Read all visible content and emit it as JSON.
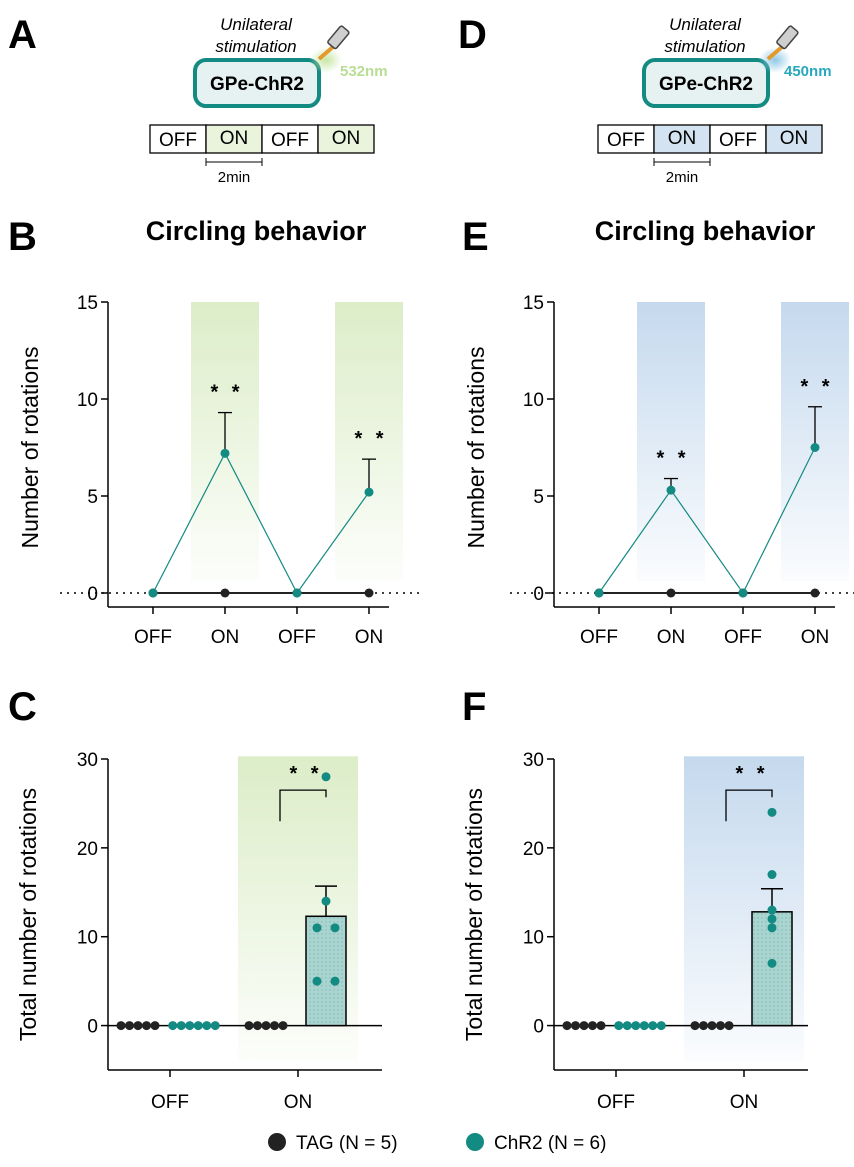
{
  "colors": {
    "tag": "#222222",
    "chr2": "#138a82",
    "green_fill": "#dcedc8",
    "green_text": "#b9dd94",
    "blue_fill": "#c5d9ee",
    "blue_text": "#28a8bd",
    "box_stroke": "#138a82",
    "box_fill": "#e6f1f1",
    "bar_fill": "#a9d4d0"
  },
  "icons": {
    "optic_fiber": "optic-fiber-icon",
    "light_cone": "light-cone-icon"
  },
  "legend": {
    "tag": "TAG (N = 5)",
    "chr2": "ChR2 (N = 6)"
  },
  "panels": {
    "A": {
      "letter": "A",
      "stim_line1": "Unilateral",
      "stim_line2": "stimulation",
      "box_label": "GPe-ChR2",
      "wavelength": "532nm",
      "sequence": [
        "OFF",
        "ON",
        "OFF",
        "ON"
      ],
      "time_label": "2min"
    },
    "D": {
      "letter": "D",
      "stim_line1": "Unilateral",
      "stim_line2": "stimulation",
      "box_label": "GPe-ChR2",
      "wavelength": "450nm",
      "sequence": [
        "OFF",
        "ON",
        "OFF",
        "ON"
      ],
      "time_label": "2min"
    }
  },
  "chart_data": [
    {
      "panel": "B",
      "type": "line",
      "title": "Circling behavior",
      "ylabel": "Number of rotations",
      "xlabel": "",
      "categories": [
        "OFF",
        "ON",
        "OFF",
        "ON"
      ],
      "ylim": [
        0,
        15
      ],
      "yticks": [
        0,
        5,
        10,
        15
      ],
      "shaded_categories": [
        1,
        3
      ],
      "light": "green",
      "series": [
        {
          "name": "TAG (N = 5)",
          "color_key": "tag",
          "values": [
            0,
            0,
            0,
            0
          ],
          "sem": [
            0,
            0,
            0,
            0
          ]
        },
        {
          "name": "ChR2 (N = 6)",
          "color_key": "chr2",
          "values": [
            0,
            7.2,
            0,
            5.2
          ],
          "sem": [
            0,
            2.1,
            0,
            1.7
          ]
        }
      ],
      "annotations": [
        {
          "category": 1,
          "text": "* *"
        },
        {
          "category": 3,
          "text": "* *"
        }
      ]
    },
    {
      "panel": "E",
      "type": "line",
      "title": "Circling behavior",
      "ylabel": "Number of rotations",
      "xlabel": "",
      "categories": [
        "OFF",
        "ON",
        "OFF",
        "ON"
      ],
      "ylim": [
        0,
        15
      ],
      "yticks": [
        0,
        5,
        10,
        15
      ],
      "shaded_categories": [
        1,
        3
      ],
      "light": "blue",
      "series": [
        {
          "name": "TAG (N = 5)",
          "color_key": "tag",
          "values": [
            0,
            0,
            0,
            0
          ],
          "sem": [
            0,
            0,
            0,
            0
          ]
        },
        {
          "name": "ChR2 (N = 6)",
          "color_key": "chr2",
          "values": [
            0,
            5.3,
            0,
            7.5
          ],
          "sem": [
            0,
            0.6,
            0,
            2.1
          ]
        }
      ],
      "annotations": [
        {
          "category": 1,
          "text": "* *"
        },
        {
          "category": 3,
          "text": "* *"
        }
      ]
    },
    {
      "panel": "C",
      "type": "bar",
      "ylabel": "Total number of rotations",
      "xlabel": "",
      "categories": [
        "OFF",
        "ON"
      ],
      "ylim": [
        -5,
        30
      ],
      "yticks": [
        0,
        10,
        20,
        30
      ],
      "light": "green",
      "bar": {
        "category": 1,
        "series": "ChR2 (N = 6)",
        "value": 12.3,
        "sem": 3.4
      },
      "points": [
        {
          "category": 0,
          "series": "TAG (N = 5)",
          "values": [
            0,
            0,
            0,
            0,
            0
          ]
        },
        {
          "category": 0,
          "series": "ChR2 (N = 6)",
          "values": [
            0,
            0,
            0,
            0,
            0,
            0
          ]
        },
        {
          "category": 1,
          "series": "TAG (N = 5)",
          "values": [
            0,
            0,
            0,
            0,
            0
          ]
        },
        {
          "category": 1,
          "series": "ChR2 (N = 6)",
          "values": [
            28,
            14,
            11,
            11,
            5,
            5
          ]
        }
      ],
      "significance": {
        "text": "* *",
        "level": 26.5
      }
    },
    {
      "panel": "F",
      "type": "bar",
      "ylabel": "Total number of rotations",
      "xlabel": "",
      "categories": [
        "OFF",
        "ON"
      ],
      "ylim": [
        -5,
        30
      ],
      "yticks": [
        0,
        10,
        20,
        30
      ],
      "light": "blue",
      "bar": {
        "category": 1,
        "series": "ChR2 (N = 6)",
        "value": 12.8,
        "sem": 2.6
      },
      "points": [
        {
          "category": 0,
          "series": "TAG (N = 5)",
          "values": [
            0,
            0,
            0,
            0,
            0
          ]
        },
        {
          "category": 0,
          "series": "ChR2 (N = 6)",
          "values": [
            0,
            0,
            0,
            0,
            0,
            0
          ]
        },
        {
          "category": 1,
          "series": "TAG (N = 5)",
          "values": [
            0,
            0,
            0,
            0,
            0
          ]
        },
        {
          "category": 1,
          "series": "ChR2 (N = 6)",
          "values": [
            24,
            17,
            13,
            12,
            11,
            7
          ]
        }
      ],
      "significance": {
        "text": "* *",
        "level": 26.5
      }
    }
  ]
}
